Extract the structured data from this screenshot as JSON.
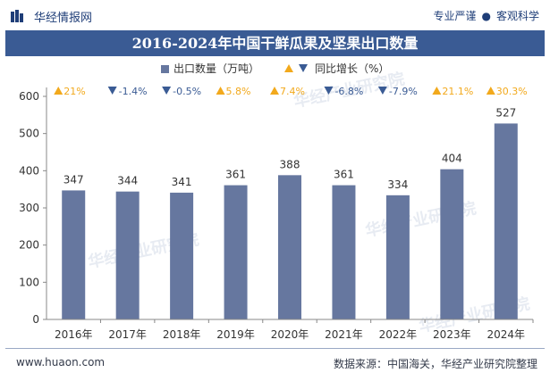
{
  "header": {
    "site_name": "华经情报网",
    "tagline_left": "专业严谨",
    "tagline_right": "客观科学"
  },
  "title": "2016-2024年中国干鲜瓜果及坚果出口数量",
  "legend": {
    "series1": "出口数量（万吨）",
    "series2": "同比增长（%）"
  },
  "footer": {
    "website": "www.huaon.com",
    "source": "数据来源：中国海关，华经产业研究院整理"
  },
  "watermark": "华经产业研究院",
  "colors": {
    "bar": "#66779f",
    "up": "#f2a91c",
    "down": "#3a5b94",
    "title_bg": "#3a5b94"
  },
  "chart_data": {
    "type": "bar",
    "categories": [
      "2016年",
      "2017年",
      "2018年",
      "2019年",
      "2020年",
      "2021年",
      "2022年",
      "2023年",
      "2024年"
    ],
    "series": [
      {
        "name": "出口数量（万吨）",
        "values": [
          347,
          344,
          341,
          361,
          388,
          361,
          334,
          404,
          527
        ]
      },
      {
        "name": "同比增长（%）",
        "values": [
          21,
          -1.4,
          -0.5,
          5.8,
          7.4,
          -6.8,
          -7.9,
          21.1,
          30.3
        ],
        "labels": [
          "21%",
          "-1.4%",
          "-0.5%",
          "5.8%",
          "7.4%",
          "-6.8%",
          "-7.9%",
          "21.1%",
          "30.3%"
        ]
      }
    ],
    "yticks": [
      0,
      100,
      200,
      300,
      400,
      500,
      600
    ],
    "ylim": [
      0,
      600
    ],
    "legend_position": "top-center"
  }
}
